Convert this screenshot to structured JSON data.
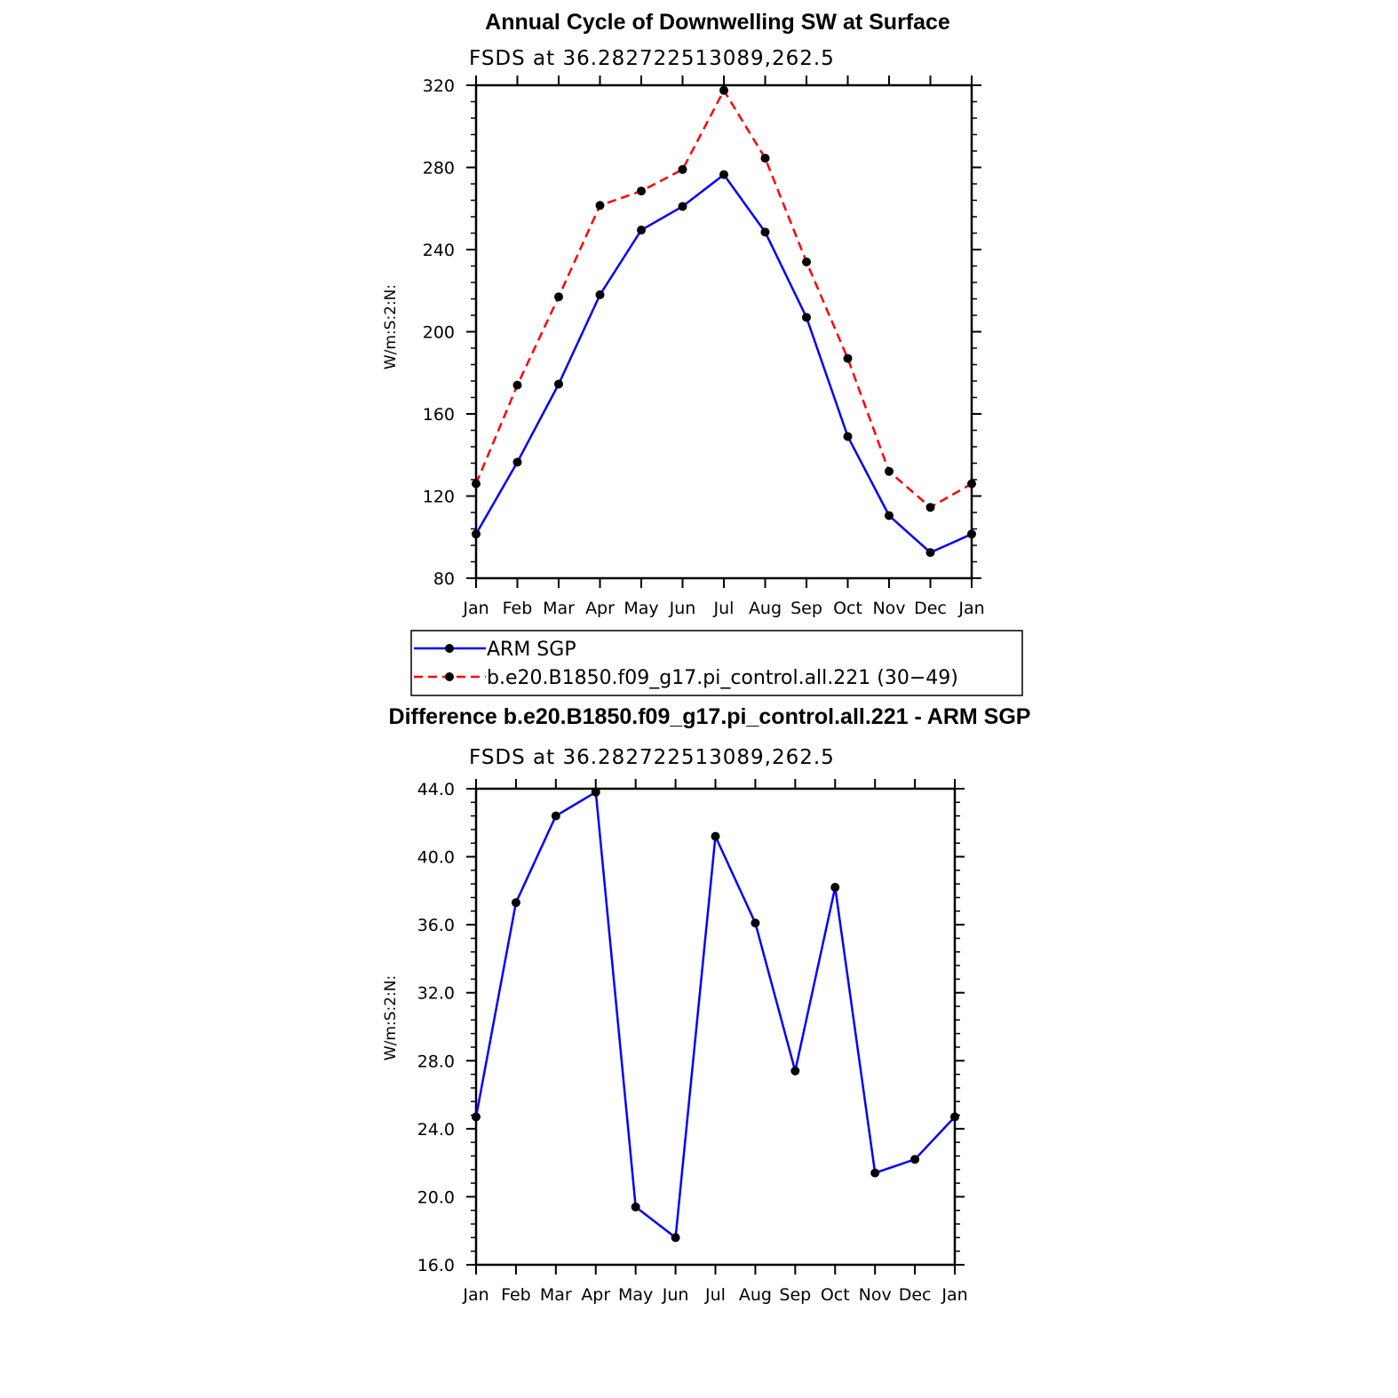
{
  "chart_data": [
    {
      "type": "line",
      "title": "Annual Cycle of Downwelling SW at Surface",
      "subtitle": "FSDS at 36.282722513089,262.5",
      "ylabel": "W/m:S:2:N:",
      "xlabel": "",
      "categories": [
        "Jan",
        "Feb",
        "Mar",
        "Apr",
        "May",
        "Jun",
        "Jul",
        "Aug",
        "Sep",
        "Oct",
        "Nov",
        "Dec",
        "Jan"
      ],
      "ylim": [
        80,
        320
      ],
      "yticks": [
        "80",
        "120",
        "160",
        "200",
        "240",
        "280",
        "320"
      ],
      "series": [
        {
          "name": "ARM SGP",
          "color": "#0000ff",
          "dash": "solid",
          "values": [
            101.5,
            136.5,
            174.5,
            218,
            249.5,
            261,
            276.5,
            248.5,
            207,
            149,
            110.5,
            92.5,
            101.5
          ]
        },
        {
          "name": "b.e20.B1850.f09_g17.pi_control.all.221 (30−49)",
          "color": "#ff0000",
          "dash": "dashed",
          "values": [
            126,
            174,
            217,
            261.5,
            268.5,
            279,
            317.5,
            284.5,
            234,
            187,
            132,
            114.5,
            126
          ]
        }
      ],
      "legend": "below"
    },
    {
      "type": "line",
      "title": "Difference b.e20.B1850.f09_g17.pi_control.all.221 - ARM SGP",
      "subtitle": "FSDS at 36.282722513089,262.5",
      "ylabel": "W/m:S:2:N:",
      "xlabel": "",
      "categories": [
        "Jan",
        "Feb",
        "Mar",
        "Apr",
        "May",
        "Jun",
        "Jul",
        "Aug",
        "Sep",
        "Oct",
        "Nov",
        "Dec",
        "Jan"
      ],
      "ylim": [
        16,
        44
      ],
      "yticks": [
        "16.0",
        "20.0",
        "24.0",
        "28.0",
        "32.0",
        "36.0",
        "40.0",
        "44.0"
      ],
      "series": [
        {
          "color": "#0000ff",
          "dash": "solid",
          "values": [
            24.7,
            37.3,
            42.4,
            43.8,
            19.4,
            17.6,
            41.2,
            36.1,
            27.4,
            38.2,
            21.4,
            22.2,
            24.7
          ]
        }
      ]
    }
  ]
}
